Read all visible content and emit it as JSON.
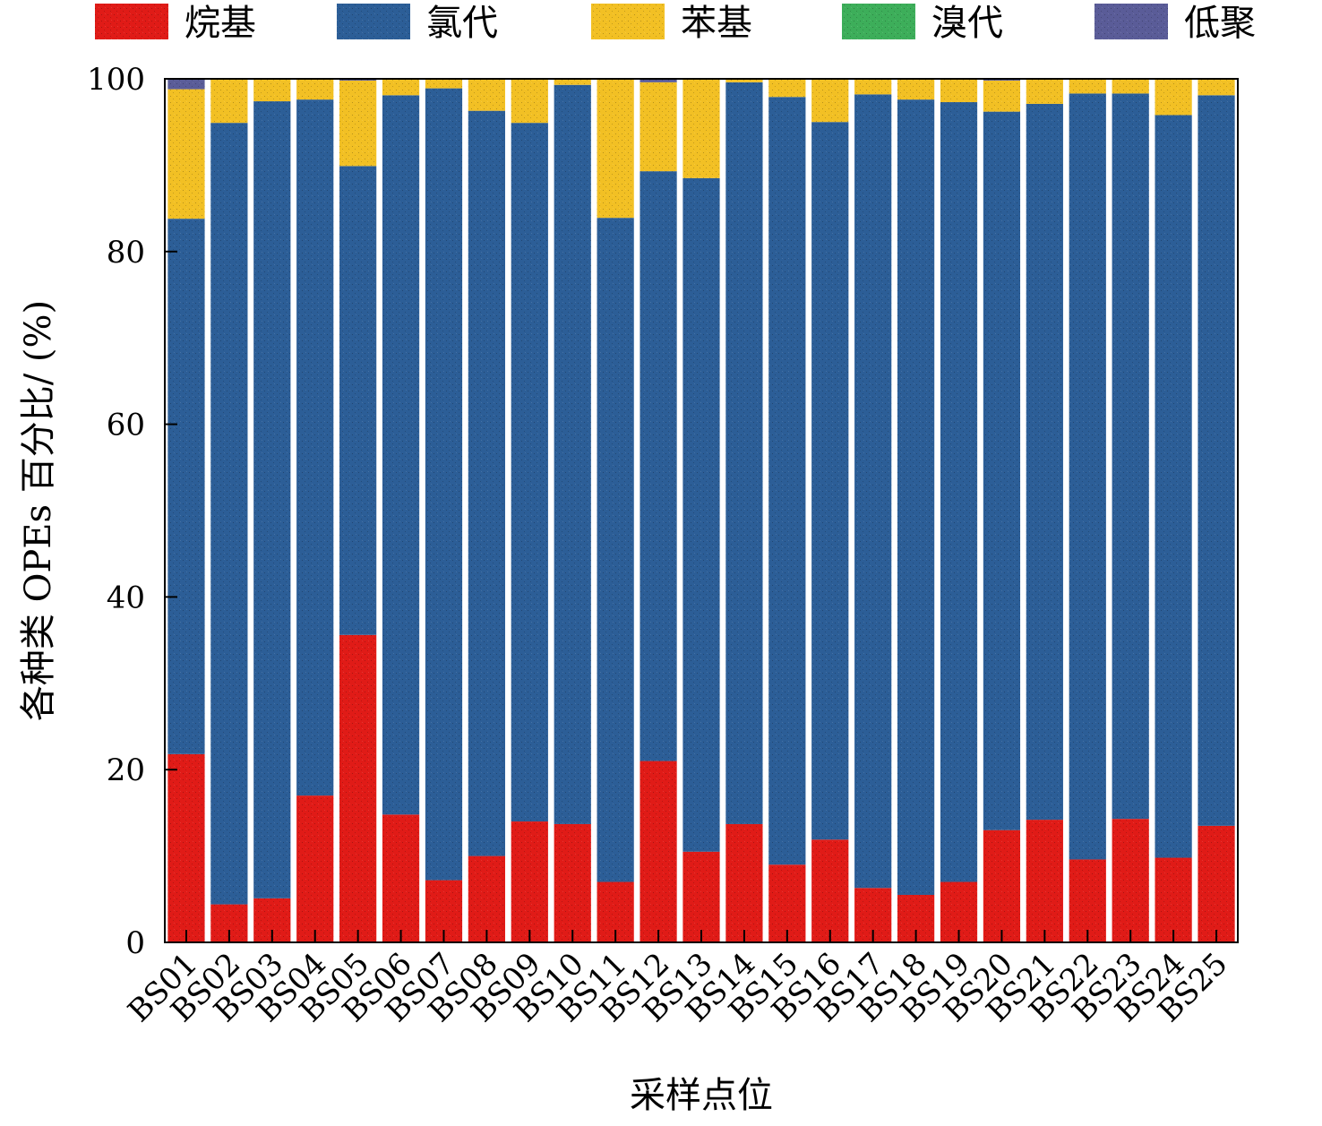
{
  "chart_data": {
    "type": "bar",
    "stacked": true,
    "categories": [
      "BS01",
      "BS02",
      "BS03",
      "BS04",
      "BS05",
      "BS06",
      "BS07",
      "BS08",
      "BS09",
      "BS10",
      "BS11",
      "BS12",
      "BS13",
      "BS14",
      "BS15",
      "BS16",
      "BS17",
      "BS18",
      "BS19",
      "BS20",
      "BS21",
      "BS22",
      "BS23",
      "BS24",
      "BS25"
    ],
    "series": [
      {
        "name": "烷基",
        "color": "#E01B17",
        "values": [
          21.8,
          4.4,
          5.1,
          17.0,
          35.6,
          14.8,
          7.2,
          10.0,
          14.0,
          13.7,
          7.0,
          21.0,
          10.5,
          13.7,
          9.0,
          11.9,
          6.3,
          5.5,
          7.0,
          13.0,
          14.2,
          9.6,
          14.3,
          9.8,
          13.5
        ]
      },
      {
        "name": "氯代",
        "color": "#2C5E97",
        "values": [
          62.0,
          90.5,
          92.3,
          80.6,
          54.3,
          83.3,
          91.7,
          86.3,
          80.9,
          85.6,
          76.9,
          68.3,
          78.0,
          85.9,
          88.9,
          83.1,
          91.9,
          92.1,
          90.3,
          83.2,
          82.9,
          88.7,
          84.0,
          86.0,
          84.6
        ]
      },
      {
        "name": "苯基",
        "color": "#F2C024",
        "values": [
          15.0,
          5.1,
          2.6,
          2.4,
          9.9,
          1.9,
          1.1,
          3.6,
          5.1,
          0.6,
          16.1,
          10.3,
          11.5,
          0.3,
          2.1,
          5.0,
          1.8,
          2.4,
          2.7,
          3.6,
          2.8,
          1.7,
          1.7,
          4.1,
          1.9
        ]
      },
      {
        "name": "溴代",
        "color": "#3DAE5A",
        "values": [
          0,
          0,
          0,
          0,
          0,
          0,
          0,
          0,
          0,
          0,
          0,
          0,
          0,
          0,
          0,
          0,
          0,
          0,
          0,
          0,
          0,
          0,
          0,
          0,
          0
        ]
      },
      {
        "name": "低聚",
        "color": "#5A5C98",
        "values": [
          1.2,
          0,
          0,
          0,
          0.3,
          0,
          0,
          0.2,
          0,
          0,
          0,
          0.5,
          0,
          0.1,
          0,
          0,
          0,
          0,
          0,
          0.2,
          0.2,
          0,
          0,
          0.2,
          0
        ]
      }
    ],
    "xlabel": "采样点位",
    "ylabel": "各种类 OPEs 百分比/ (%)",
    "ylim": [
      0,
      100
    ],
    "yticks": [
      0,
      20,
      40,
      60,
      80,
      100
    ],
    "legend_position": "top",
    "grid": false
  }
}
